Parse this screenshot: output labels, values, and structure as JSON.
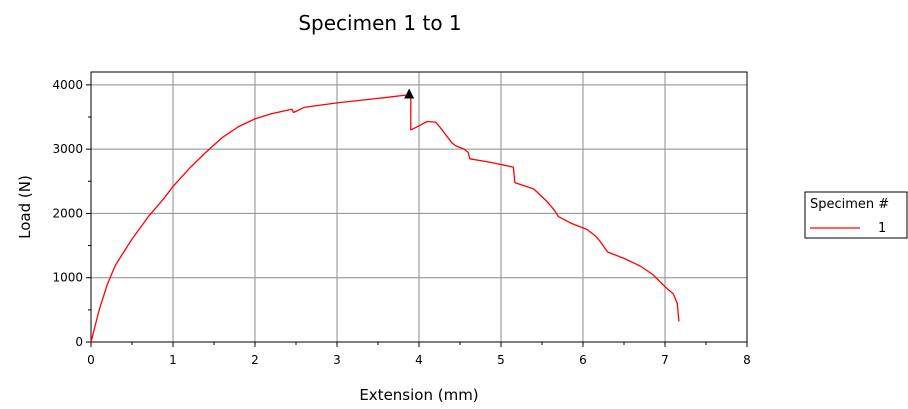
{
  "chart_data": {
    "type": "line",
    "title": "Specimen 1 to 1",
    "xlabel": "Extension (mm)",
    "ylabel": "Load (N)",
    "xlim": [
      0,
      8
    ],
    "ylim": [
      0,
      4200
    ],
    "xticks": [
      0,
      1,
      2,
      3,
      4,
      5,
      6,
      7,
      8
    ],
    "yticks": [
      0,
      1000,
      2000,
      3000,
      4000
    ],
    "grid": true,
    "legend": {
      "title": "Specimen #",
      "position": "right"
    },
    "series": [
      {
        "name": "1",
        "color": "#ff0000",
        "x": [
          0,
          0.1,
          0.2,
          0.3,
          0.5,
          0.7,
          0.9,
          1.0,
          1.2,
          1.4,
          1.6,
          1.8,
          2.0,
          2.2,
          2.45,
          2.47,
          2.6,
          3.0,
          3.5,
          3.9,
          3.9,
          3.95,
          4.1,
          4.2,
          4.25,
          4.4,
          4.45,
          4.55,
          4.6,
          4.62,
          4.85,
          5.15,
          5.17,
          5.4,
          5.55,
          5.65,
          5.7,
          5.85,
          6.05,
          6.15,
          6.2,
          6.3,
          6.5,
          6.7,
          6.85,
          7.0,
          7.1,
          7.15,
          7.17
        ],
        "y": [
          0,
          500,
          900,
          1200,
          1600,
          1950,
          2250,
          2420,
          2700,
          2950,
          3180,
          3350,
          3470,
          3550,
          3620,
          3570,
          3650,
          3720,
          3790,
          3850,
          3300,
          3330,
          3430,
          3420,
          3350,
          3100,
          3050,
          3000,
          2950,
          2850,
          2800,
          2720,
          2480,
          2380,
          2200,
          2050,
          1950,
          1850,
          1750,
          1650,
          1580,
          1400,
          1300,
          1180,
          1050,
          860,
          750,
          600,
          320
        ]
      }
    ],
    "annotations": [
      {
        "type": "marker",
        "shape": "triangle",
        "x": 3.88,
        "y": 3850
      }
    ]
  }
}
